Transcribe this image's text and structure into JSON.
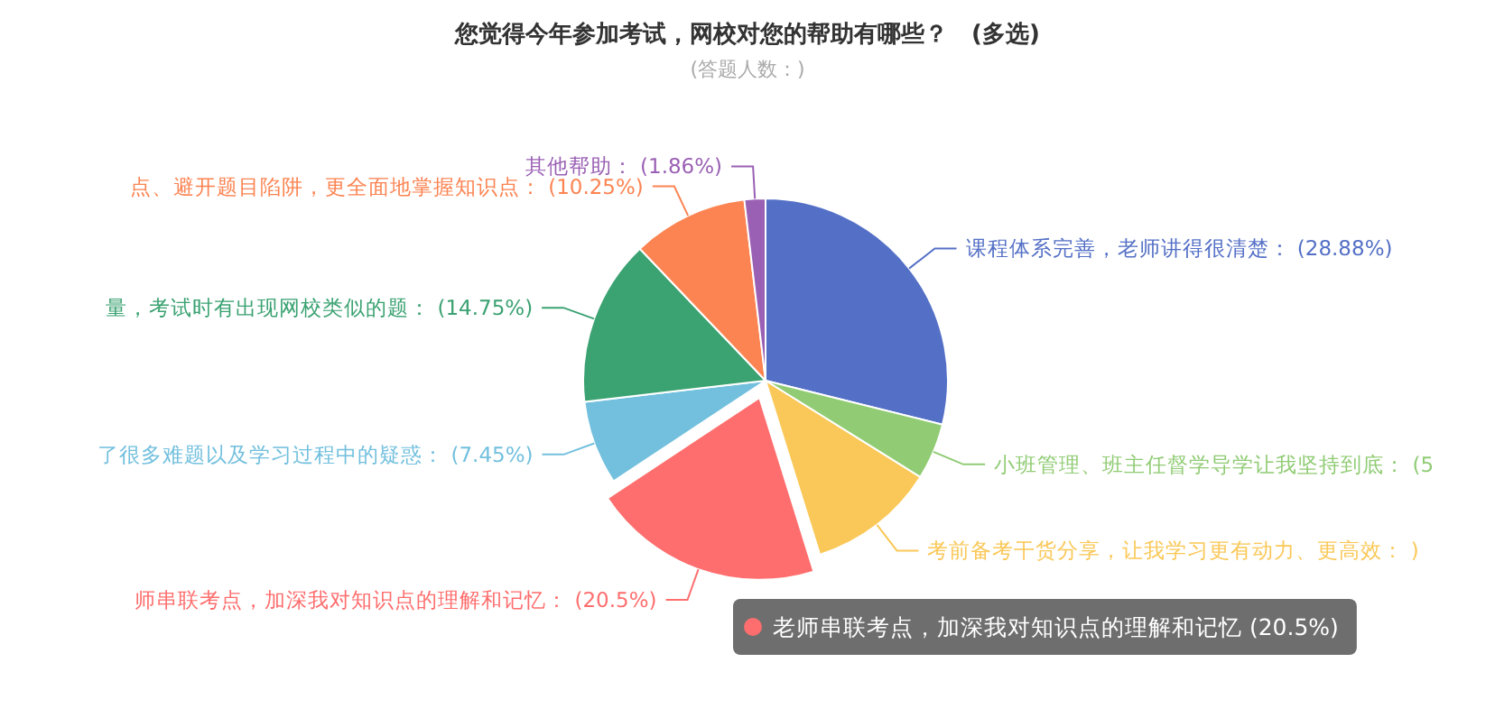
{
  "chart_data": {
    "type": "pie",
    "title": "您觉得今年参加考试，网校对您的帮助有哪些？　(多选)",
    "subtitle": "(答题人数：)",
    "categories": [
      "课程体系完善，老师讲得很清楚",
      "小班管理、班主任督学导学让我坚持到底",
      "考前备考干货分享，让我学习更有动力、更高效",
      "师串联考点，加深我对知识点的理解和记忆",
      "了很多难题以及学习过程中的疑惑",
      "量，考试时有出现网校类似的题",
      "点、避开题目陷阱，更全面地掌握知识点",
      "其他帮助"
    ],
    "values": [
      28.88,
      5,
      11.31,
      20.5,
      7.45,
      14.75,
      10.25,
      1.86
    ],
    "value_labels": [
      "(28.88%)",
      "(5",
      ")",
      "(20.5%)",
      "(7.45%)",
      "(14.75%)",
      "(10.25%)",
      "(1.86%)"
    ],
    "colors": [
      "#5470c6",
      "#91cc75",
      "#fac858",
      "#ff6e6e",
      "#73c0de",
      "#3ba272",
      "#fc8452",
      "#9a60b4"
    ],
    "annotations": [
      "老师串联考点，加深我对知识点的理解和记忆 (20.5%)"
    ]
  }
}
